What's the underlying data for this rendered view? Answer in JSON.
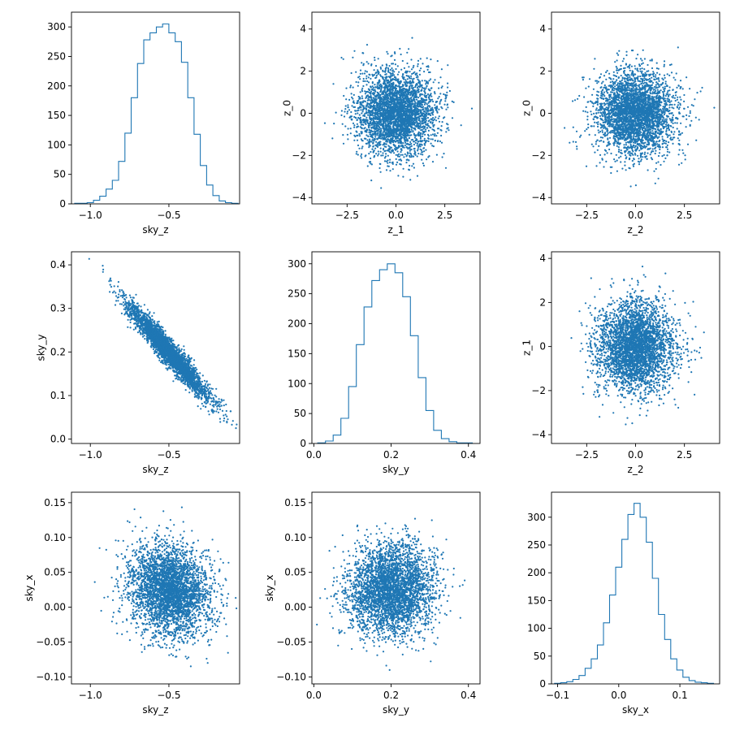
{
  "figure": {
    "series_color": "#1f77b4"
  },
  "chart_data": [
    {
      "type": "histogram",
      "xlabel": "sky_z",
      "ylabel": "",
      "xlim": [
        -1.12,
        -0.05
      ],
      "ylim": [
        0,
        325
      ],
      "xticks": [
        -1.0,
        -0.5
      ],
      "yticks": [
        0,
        50,
        100,
        150,
        200,
        250,
        300
      ],
      "bins_center": [
        -1.08,
        -1.04,
        -1.0,
        -0.96,
        -0.92,
        -0.88,
        -0.84,
        -0.8,
        -0.76,
        -0.72,
        -0.68,
        -0.64,
        -0.6,
        -0.56,
        -0.52,
        -0.48,
        -0.44,
        -0.4,
        -0.36,
        -0.32,
        -0.28,
        -0.24,
        -0.2,
        -0.16,
        -0.12,
        -0.08
      ],
      "counts": [
        1,
        1,
        2,
        6,
        13,
        25,
        40,
        72,
        120,
        180,
        238,
        278,
        290,
        300,
        305,
        290,
        275,
        240,
        180,
        118,
        65,
        32,
        14,
        5,
        2,
        1
      ]
    },
    {
      "type": "scatter",
      "xlabel": "z_1",
      "ylabel": "z_0",
      "xlim": [
        -4.3,
        4.3
      ],
      "ylim": [
        -4.3,
        4.8
      ],
      "xticks": [
        -2.5,
        0.0,
        2.5
      ],
      "yticks": [
        -4,
        -2,
        0,
        2,
        4
      ],
      "distribution": {
        "x_mean": 0.0,
        "x_sd": 1.0,
        "y_mean": 0.0,
        "y_sd": 1.0,
        "corr": 0.0
      }
    },
    {
      "type": "scatter",
      "xlabel": "z_2",
      "ylabel": "z_0",
      "xlim": [
        -4.3,
        4.3
      ],
      "ylim": [
        -4.3,
        4.8
      ],
      "xticks": [
        -2.5,
        0.0,
        2.5
      ],
      "yticks": [
        -4,
        -2,
        0,
        2,
        4
      ],
      "distribution": {
        "x_mean": 0.0,
        "x_sd": 1.0,
        "y_mean": 0.0,
        "y_sd": 1.0,
        "corr": 0.0
      }
    },
    {
      "type": "scatter",
      "xlabel": "sky_z",
      "ylabel": "sky_y",
      "xlim": [
        -1.12,
        -0.05
      ],
      "ylim": [
        -0.01,
        0.43
      ],
      "xticks": [
        -1.0,
        -0.5
      ],
      "yticks": [
        0.0,
        0.1,
        0.2,
        0.3,
        0.4
      ],
      "distribution": {
        "x_mean": -0.5,
        "x_sd": 0.13,
        "y_mean": 0.2,
        "y_sd": 0.055,
        "corr": -0.96
      }
    },
    {
      "type": "histogram",
      "xlabel": "sky_y",
      "ylabel": "",
      "xlim": [
        -0.005,
        0.43
      ],
      "ylim": [
        0,
        320
      ],
      "xticks": [
        0.0,
        0.2,
        0.4
      ],
      "yticks": [
        0,
        50,
        100,
        150,
        200,
        250,
        300
      ],
      "bins_center": [
        0.02,
        0.04,
        0.06,
        0.08,
        0.1,
        0.12,
        0.14,
        0.16,
        0.18,
        0.2,
        0.22,
        0.24,
        0.26,
        0.28,
        0.3,
        0.32,
        0.34,
        0.36,
        0.38,
        0.4
      ],
      "counts": [
        1,
        4,
        14,
        42,
        95,
        165,
        228,
        272,
        290,
        300,
        285,
        245,
        180,
        110,
        55,
        22,
        8,
        3,
        1,
        1
      ]
    },
    {
      "type": "scatter",
      "xlabel": "z_2",
      "ylabel": "z_1",
      "xlim": [
        -4.3,
        4.3
      ],
      "ylim": [
        -4.4,
        4.3
      ],
      "xticks": [
        -2.5,
        0.0,
        2.5
      ],
      "yticks": [
        -4,
        -2,
        0,
        2,
        4
      ],
      "distribution": {
        "x_mean": 0.0,
        "x_sd": 1.0,
        "y_mean": 0.0,
        "y_sd": 1.0,
        "corr": 0.0
      }
    },
    {
      "type": "scatter",
      "xlabel": "sky_z",
      "ylabel": "sky_x",
      "xlim": [
        -1.12,
        -0.05
      ],
      "ylim": [
        -0.11,
        0.165
      ],
      "xticks": [
        -1.0,
        -0.5
      ],
      "yticks": [
        -0.1,
        -0.05,
        0.0,
        0.05,
        0.1,
        0.15
      ],
      "distribution": {
        "x_mean": -0.5,
        "x_sd": 0.13,
        "y_mean": 0.025,
        "y_sd": 0.033,
        "corr": -0.15
      }
    },
    {
      "type": "scatter",
      "xlabel": "sky_y",
      "ylabel": "sky_x",
      "xlim": [
        -0.005,
        0.43
      ],
      "ylim": [
        -0.11,
        0.165
      ],
      "xticks": [
        0.0,
        0.2,
        0.4
      ],
      "yticks": [
        -0.1,
        -0.05,
        0.0,
        0.05,
        0.1,
        0.15
      ],
      "distribution": {
        "x_mean": 0.2,
        "x_sd": 0.055,
        "y_mean": 0.025,
        "y_sd": 0.033,
        "corr": 0.05
      }
    },
    {
      "type": "histogram",
      "xlabel": "sky_x",
      "ylabel": "",
      "xlim": [
        -0.11,
        0.165
      ],
      "ylim": [
        0,
        345
      ],
      "xticks": [
        -0.1,
        0.0,
        0.1
      ],
      "yticks": [
        0,
        50,
        100,
        150,
        200,
        250,
        300
      ],
      "bins_center": [
        -0.1,
        -0.09,
        -0.08,
        -0.07,
        -0.06,
        -0.05,
        -0.04,
        -0.03,
        -0.02,
        -0.01,
        0.0,
        0.01,
        0.02,
        0.03,
        0.04,
        0.05,
        0.06,
        0.07,
        0.08,
        0.09,
        0.1,
        0.11,
        0.12,
        0.13,
        0.14,
        0.15
      ],
      "counts": [
        1,
        2,
        4,
        8,
        15,
        28,
        45,
        70,
        110,
        160,
        210,
        260,
        305,
        325,
        300,
        255,
        190,
        125,
        80,
        45,
        25,
        12,
        6,
        3,
        2,
        1
      ]
    }
  ]
}
